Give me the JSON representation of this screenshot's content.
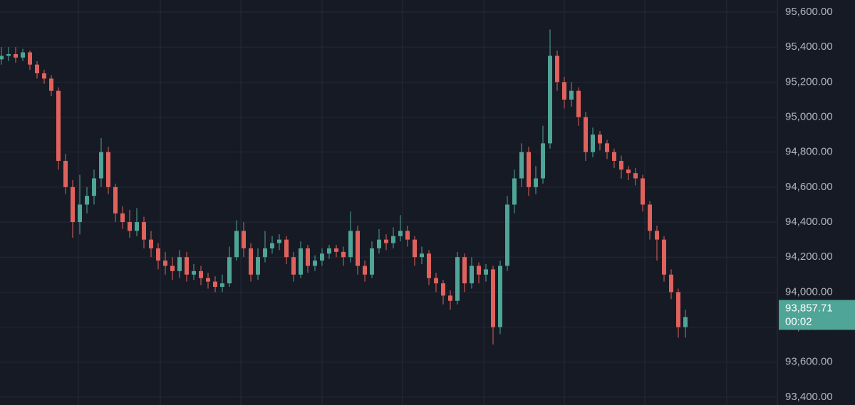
{
  "chart_data": {
    "type": "candlestick",
    "open": [
      95330,
      95350,
      95360,
      95340,
      95370,
      95300,
      95250,
      95220,
      95150,
      94750,
      94600,
      94400,
      94500,
      94550,
      94650,
      94800,
      94600,
      94450,
      94400,
      94350,
      94400,
      94300,
      94250,
      94180,
      94150,
      94120,
      94200,
      94100,
      94120,
      94080,
      94060,
      94030,
      94050,
      94200,
      94350,
      94250,
      94100,
      94200,
      94250,
      94280,
      94300,
      94200,
      94100,
      94250,
      94150,
      94180,
      94220,
      94250,
      94230,
      94200,
      94350,
      94150,
      94100,
      94250,
      94300,
      94280,
      94320,
      94350,
      94300,
      94200,
      94220,
      94080,
      94050,
      93980,
      93950,
      94200,
      94050,
      94150,
      94100,
      94130,
      93800,
      94150,
      94500,
      94650,
      94800,
      94600,
      94650,
      94850,
      95350,
      95200,
      95100,
      95150,
      95000,
      94800,
      94900,
      94850,
      94800,
      94750,
      94700,
      94680,
      94650,
      94500,
      94350,
      94300,
      94100,
      94000,
      93800
    ],
    "high": [
      95400,
      95400,
      95400,
      95390,
      95380,
      95320,
      95270,
      95240,
      95170,
      94790,
      94640,
      94670,
      94600,
      94700,
      94880,
      94830,
      94620,
      94490,
      94470,
      94480,
      94430,
      94350,
      94280,
      94230,
      94200,
      94240,
      94230,
      94160,
      94150,
      94110,
      94090,
      94100,
      94260,
      94410,
      94400,
      94280,
      94250,
      94350,
      94320,
      94330,
      94320,
      94230,
      94290,
      94270,
      94210,
      94250,
      94270,
      94270,
      94260,
      94460,
      94380,
      94180,
      94290,
      94360,
      94330,
      94370,
      94440,
      94380,
      94320,
      94260,
      94240,
      94110,
      94070,
      94010,
      94230,
      94220,
      94200,
      94170,
      94160,
      94150,
      94180,
      94550,
      94700,
      94850,
      94830,
      94720,
      94950,
      95500,
      95380,
      95230,
      95200,
      95170,
      95030,
      94940,
      94920,
      94870,
      94820,
      94780,
      94720,
      94710,
      94670,
      94520,
      94380,
      94320,
      94130,
      94020,
      93900
    ],
    "low": [
      95300,
      95320,
      95310,
      95320,
      95270,
      95220,
      95190,
      95120,
      94700,
      94560,
      94310,
      94330,
      94450,
      94500,
      94600,
      94560,
      94400,
      94360,
      94310,
      94320,
      94250,
      94200,
      94130,
      94100,
      94070,
      94080,
      94060,
      94070,
      94040,
      94020,
      94000,
      94000,
      94030,
      94180,
      94200,
      94060,
      94070,
      94170,
      94220,
      94240,
      94160,
      94060,
      94080,
      94110,
      94120,
      94150,
      94190,
      94200,
      94150,
      94170,
      94100,
      94060,
      94080,
      94220,
      94240,
      94250,
      94290,
      94260,
      94150,
      94160,
      94040,
      94000,
      93930,
      93900,
      93930,
      94000,
      94020,
      94050,
      94060,
      93700,
      93760,
      94120,
      94450,
      94600,
      94550,
      94560,
      94620,
      94820,
      95150,
      95050,
      95060,
      94950,
      94750,
      94770,
      94810,
      94760,
      94710,
      94650,
      94640,
      94610,
      94460,
      94300,
      94180,
      94060,
      93960,
      93740,
      93740
    ],
    "close": [
      95350,
      95360,
      95340,
      95370,
      95300,
      95250,
      95220,
      95150,
      94750,
      94600,
      94400,
      94500,
      94550,
      94650,
      94800,
      94600,
      94450,
      94400,
      94350,
      94400,
      94300,
      94250,
      94180,
      94150,
      94120,
      94200,
      94100,
      94120,
      94080,
      94060,
      94030,
      94050,
      94200,
      94350,
      94250,
      94100,
      94200,
      94250,
      94280,
      94300,
      94200,
      94100,
      94250,
      94150,
      94180,
      94220,
      94250,
      94230,
      94200,
      94350,
      94150,
      94100,
      94250,
      94300,
      94280,
      94320,
      94350,
      94300,
      94200,
      94220,
      94080,
      94050,
      93980,
      93950,
      94200,
      94050,
      94150,
      94100,
      94130,
      93800,
      94150,
      94500,
      94650,
      94800,
      94600,
      94650,
      94850,
      95350,
      95200,
      95100,
      95150,
      95000,
      94800,
      94900,
      94850,
      94800,
      94750,
      94700,
      94680,
      94650,
      94500,
      94350,
      94300,
      94100,
      94000,
      93800,
      93857.71
    ],
    "up_color": "#4fa597",
    "down_color": "#e0625d",
    "ylim": [
      93355,
      95669
    ],
    "yticks": [
      {
        "value": 93400,
        "label": "93,400.00"
      },
      {
        "value": 93600,
        "label": "93,600.00"
      },
      {
        "value": 93800,
        "label": "93,800.00"
      },
      {
        "value": 94000,
        "label": "94,000.00"
      },
      {
        "value": 94200,
        "label": "94,200.00"
      },
      {
        "value": 94400,
        "label": "94,400.00"
      },
      {
        "value": 94600,
        "label": "94,600.00"
      },
      {
        "value": 94800,
        "label": "94,800.00"
      },
      {
        "value": 95000,
        "label": "95,000.00"
      },
      {
        "value": 95200,
        "label": "95,200.00"
      },
      {
        "value": 95400,
        "label": "95,400.00"
      },
      {
        "value": 95600,
        "label": "95,600.00"
      }
    ],
    "grid": true,
    "last_price_label": "93,857.71",
    "countdown": "00:02"
  }
}
